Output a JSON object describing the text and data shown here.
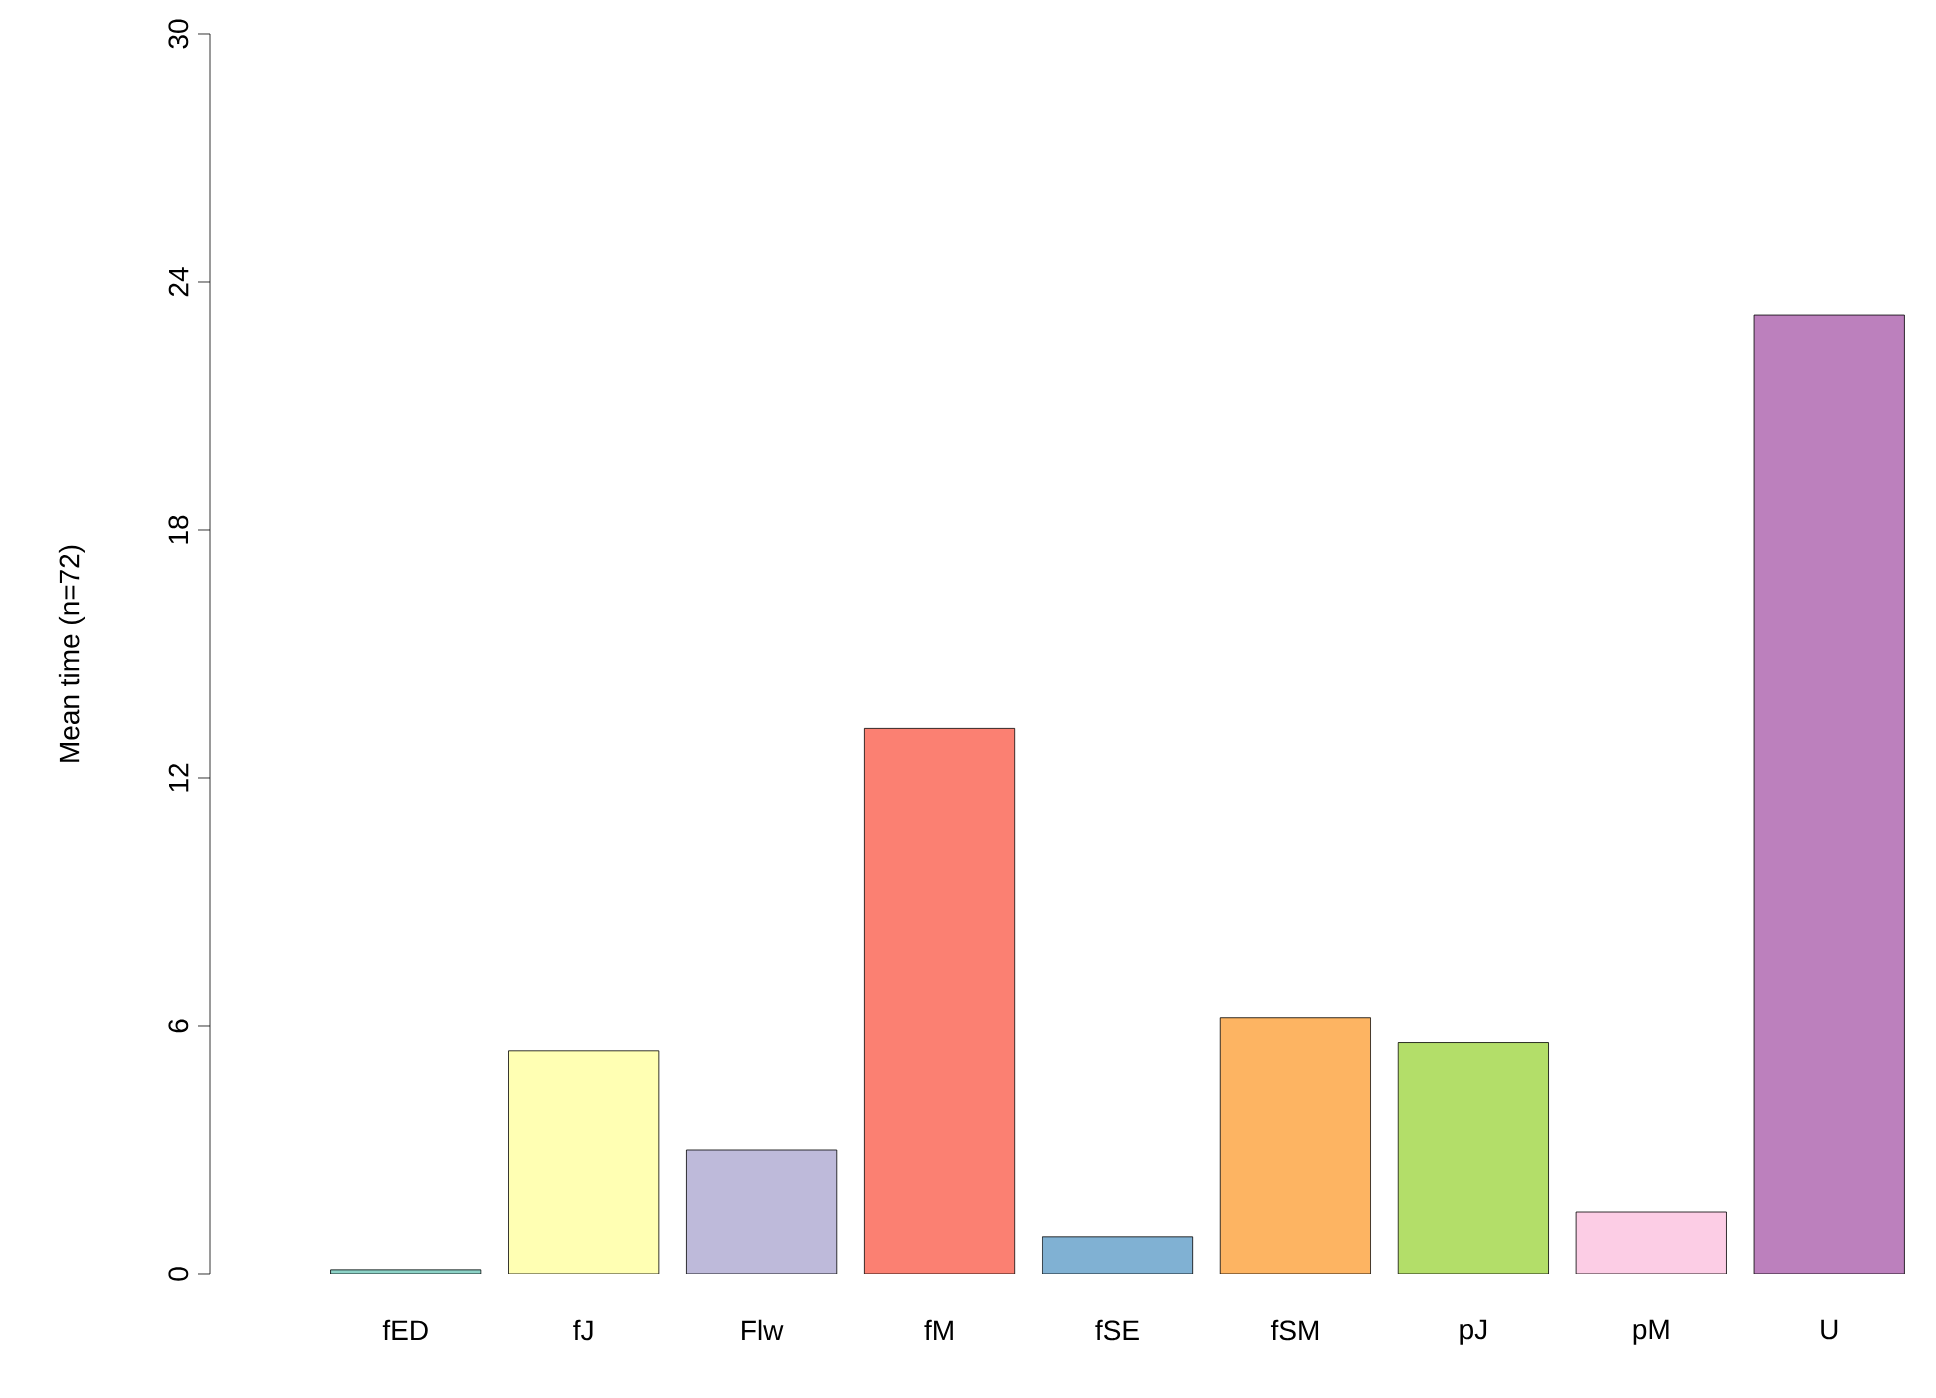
{
  "chart_data": {
    "type": "bar",
    "ylabel": "Mean time (n=72)",
    "categories": [
      "fED",
      "fJ",
      "Flw",
      "fM",
      "fSE",
      "fSM",
      "pJ",
      "pM",
      "U"
    ],
    "values": [
      0.1,
      5.4,
      3.0,
      13.2,
      0.9,
      6.2,
      5.6,
      1.5,
      23.2
    ],
    "colors": [
      "#8dd3c7",
      "#ffffb3",
      "#bebada",
      "#fb8072",
      "#80b1d3",
      "#fdb462",
      "#b3de69",
      "#fccde5",
      "#bc80bd"
    ],
    "ylim": [
      0,
      30
    ],
    "yticks": [
      0,
      6,
      12,
      18,
      24,
      30
    ],
    "grid": false
  }
}
